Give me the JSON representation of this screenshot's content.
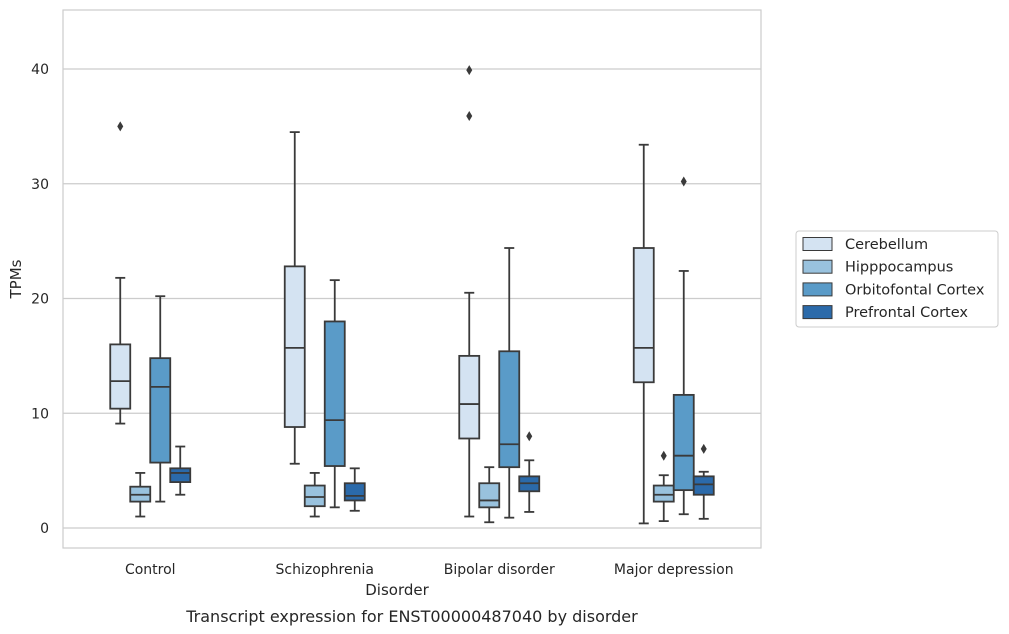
{
  "chart_data": {
    "type": "box",
    "xlabel": "Disorder",
    "ylabel": "TPMs",
    "caption": "Transcript expression for ENST00000487040 by disorder",
    "ylim": [
      -1.5,
      45.5
    ],
    "yticks": [
      0,
      10,
      20,
      30,
      40
    ],
    "grid": "horizontal",
    "legend_position": "right",
    "categories": [
      "Control",
      "Schizophrenia",
      "Bipolar disorder",
      "Major depression"
    ],
    "series": [
      {
        "name": "Cerebellum",
        "color": "#d4e3f2",
        "boxes": [
          {
            "whislo": 9.1,
            "q1": 10.4,
            "med": 12.8,
            "q3": 16.0,
            "whishi": 21.8,
            "fliers": [
              35.0
            ]
          },
          {
            "whislo": 5.6,
            "q1": 8.8,
            "med": 15.7,
            "q3": 22.8,
            "whishi": 34.5,
            "fliers": []
          },
          {
            "whislo": 1.0,
            "q1": 7.8,
            "med": 10.8,
            "q3": 15.0,
            "whishi": 20.5,
            "fliers": [
              35.9,
              39.9
            ]
          },
          {
            "whislo": 0.4,
            "q1": 12.7,
            "med": 15.7,
            "q3": 24.4,
            "whishi": 33.4,
            "fliers": []
          }
        ]
      },
      {
        "name": "Hipppocampus",
        "color": "#99c2de",
        "boxes": [
          {
            "whislo": 1.0,
            "q1": 2.3,
            "med": 2.9,
            "q3": 3.6,
            "whishi": 4.8,
            "fliers": []
          },
          {
            "whislo": 1.0,
            "q1": 1.9,
            "med": 2.7,
            "q3": 3.7,
            "whishi": 4.8,
            "fliers": []
          },
          {
            "whislo": 0.5,
            "q1": 1.8,
            "med": 2.4,
            "q3": 3.9,
            "whishi": 5.3,
            "fliers": []
          },
          {
            "whislo": 0.6,
            "q1": 2.3,
            "med": 2.9,
            "q3": 3.7,
            "whishi": 4.6,
            "fliers": [
              6.3
            ]
          }
        ]
      },
      {
        "name": "Orbitofontal Cortex",
        "color": "#5a9bc8",
        "boxes": [
          {
            "whislo": 2.3,
            "q1": 5.7,
            "med": 12.3,
            "q3": 14.8,
            "whishi": 20.2,
            "fliers": []
          },
          {
            "whislo": 1.8,
            "q1": 5.4,
            "med": 9.4,
            "q3": 18.0,
            "whishi": 21.6,
            "fliers": []
          },
          {
            "whislo": 0.9,
            "q1": 5.3,
            "med": 7.3,
            "q3": 15.4,
            "whishi": 24.4,
            "fliers": []
          },
          {
            "whislo": 1.2,
            "q1": 3.3,
            "med": 6.3,
            "q3": 11.6,
            "whishi": 22.4,
            "fliers": [
              30.2
            ]
          }
        ]
      },
      {
        "name": "Prefrontal Cortex",
        "color": "#2b6aaa",
        "boxes": [
          {
            "whislo": 2.9,
            "q1": 4.0,
            "med": 4.8,
            "q3": 5.2,
            "whishi": 7.1,
            "fliers": []
          },
          {
            "whislo": 1.5,
            "q1": 2.4,
            "med": 2.8,
            "q3": 3.9,
            "whishi": 5.2,
            "fliers": []
          },
          {
            "whislo": 1.4,
            "q1": 3.2,
            "med": 3.9,
            "q3": 4.5,
            "whishi": 5.9,
            "fliers": [
              8.0
            ]
          },
          {
            "whislo": 0.8,
            "q1": 2.9,
            "med": 3.8,
            "q3": 4.5,
            "whishi": 4.9,
            "fliers": [
              6.9
            ]
          }
        ]
      }
    ]
  }
}
